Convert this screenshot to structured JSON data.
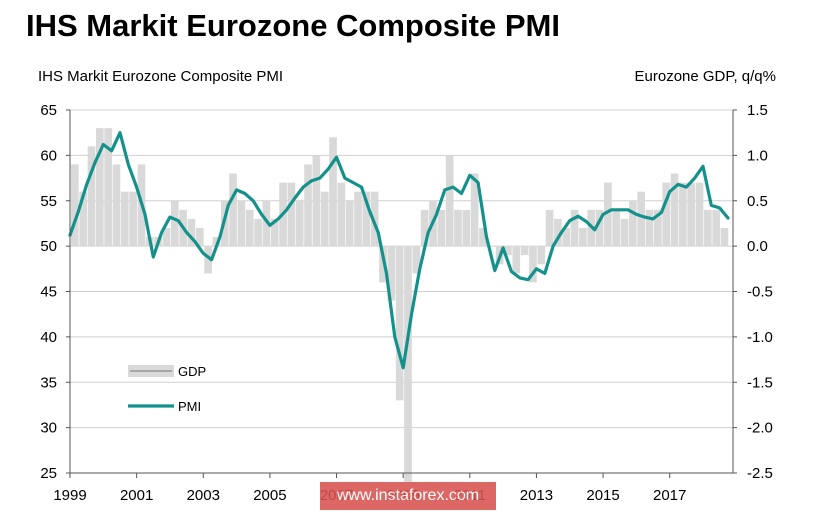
{
  "colors": {
    "pmi": "#14918a",
    "gdp": "#d9d9d9",
    "grid": "#d0d0d0",
    "watermark_bg": "#d9534f"
  },
  "chart_data": {
    "type": "bar+line",
    "title": "IHS Markit Eurozone Composite PMI",
    "ylabel_left": "IHS Markit Eurozone Composite PMI",
    "ylabel_right": "Eurozone GDP, q/q%",
    "x_ticks": [
      "1999",
      "2001",
      "2003",
      "2005",
      "2007",
      "2009",
      "2011",
      "2013",
      "2015",
      "2017"
    ],
    "xlim": [
      1999.0,
      2018.9
    ],
    "ylim_left": [
      25,
      65
    ],
    "ylim_right": [
      -2.5,
      1.5
    ],
    "y_ticks_left": [
      25,
      30,
      35,
      40,
      45,
      50,
      55,
      60,
      65
    ],
    "y_ticks_right": [
      "-2.5",
      "-2.0",
      "-1.5",
      "-1.0",
      "-0.5",
      "0.0",
      "0.5",
      "1.0",
      "1.5"
    ],
    "legend": [
      "GDP",
      "PMI"
    ],
    "legend_position": "bottom-left",
    "grid": true,
    "series": [
      {
        "name": "GDP",
        "kind": "bar",
        "axis": "right",
        "x": [
          1999.0,
          1999.25,
          1999.5,
          1999.75,
          2000.0,
          2000.25,
          2000.5,
          2000.75,
          2001.0,
          2001.25,
          2001.5,
          2001.75,
          2002.0,
          2002.25,
          2002.5,
          2002.75,
          2003.0,
          2003.25,
          2003.5,
          2003.75,
          2004.0,
          2004.25,
          2004.5,
          2004.75,
          2005.0,
          2005.25,
          2005.5,
          2005.75,
          2006.0,
          2006.25,
          2006.5,
          2006.75,
          2007.0,
          2007.25,
          2007.5,
          2007.75,
          2008.0,
          2008.25,
          2008.5,
          2008.75,
          2009.0,
          2009.25,
          2009.5,
          2009.75,
          2010.0,
          2010.25,
          2010.5,
          2010.75,
          2011.0,
          2011.25,
          2011.5,
          2011.75,
          2012.0,
          2012.25,
          2012.5,
          2012.75,
          2013.0,
          2013.25,
          2013.5,
          2013.75,
          2014.0,
          2014.25,
          2014.5,
          2014.75,
          2015.0,
          2015.25,
          2015.5,
          2015.75,
          2016.0,
          2016.25,
          2016.5,
          2016.75,
          2017.0,
          2017.25,
          2017.5,
          2017.75,
          2018.0,
          2018.25,
          2018.5
        ],
        "values": [
          0.9,
          0.6,
          1.1,
          1.3,
          1.3,
          0.9,
          0.6,
          0.6,
          0.9,
          0.1,
          0.1,
          0.2,
          0.5,
          0.4,
          0.3,
          0.2,
          -0.3,
          0.1,
          0.5,
          0.8,
          0.5,
          0.4,
          0.3,
          0.5,
          0.3,
          0.7,
          0.7,
          0.5,
          0.9,
          1.0,
          0.6,
          1.2,
          0.7,
          0.5,
          0.6,
          0.6,
          0.6,
          -0.4,
          -0.6,
          -1.7,
          -2.6,
          -0.3,
          0.4,
          0.5,
          0.4,
          1.0,
          0.4,
          0.4,
          0.8,
          0.2,
          0.0,
          -0.2,
          -0.1,
          -0.3,
          -0.1,
          -0.4,
          -0.2,
          0.4,
          0.3,
          0.2,
          0.4,
          0.2,
          0.4,
          0.4,
          0.7,
          0.4,
          0.3,
          0.5,
          0.6,
          0.4,
          0.4,
          0.7,
          0.8,
          0.7,
          0.7,
          0.7,
          0.4,
          0.4,
          0.2
        ]
      },
      {
        "name": "PMI",
        "kind": "line",
        "axis": "left",
        "x": [
          1999.0,
          1999.25,
          1999.5,
          1999.75,
          2000.0,
          2000.25,
          2000.5,
          2000.75,
          2001.0,
          2001.25,
          2001.5,
          2001.75,
          2002.0,
          2002.25,
          2002.5,
          2002.75,
          2003.0,
          2003.25,
          2003.5,
          2003.75,
          2004.0,
          2004.25,
          2004.5,
          2004.75,
          2005.0,
          2005.25,
          2005.5,
          2005.75,
          2006.0,
          2006.25,
          2006.5,
          2006.75,
          2007.0,
          2007.25,
          2007.5,
          2007.75,
          2008.0,
          2008.25,
          2008.5,
          2008.75,
          2009.0,
          2009.25,
          2009.5,
          2009.75,
          2010.0,
          2010.25,
          2010.5,
          2010.75,
          2011.0,
          2011.25,
          2011.5,
          2011.75,
          2012.0,
          2012.25,
          2012.5,
          2012.75,
          2013.0,
          2013.25,
          2013.5,
          2013.75,
          2014.0,
          2014.25,
          2014.5,
          2014.75,
          2015.0,
          2015.25,
          2015.5,
          2015.75,
          2016.0,
          2016.25,
          2016.5,
          2016.75,
          2017.0,
          2017.25,
          2017.5,
          2017.75,
          2018.0,
          2018.25,
          2018.5,
          2018.75
        ],
        "values": [
          51.2,
          53.8,
          56.8,
          59.2,
          61.2,
          60.5,
          62.5,
          59.0,
          56.5,
          53.5,
          48.8,
          51.5,
          53.2,
          52.8,
          51.5,
          50.5,
          49.2,
          48.5,
          51.0,
          54.5,
          56.2,
          55.8,
          55.0,
          53.5,
          52.3,
          53.0,
          54.0,
          55.3,
          56.5,
          57.2,
          57.5,
          58.5,
          59.8,
          57.5,
          57.0,
          56.5,
          53.8,
          51.5,
          47.0,
          40.0,
          36.6,
          42.5,
          47.5,
          51.5,
          53.5,
          56.2,
          56.5,
          55.8,
          57.8,
          57.0,
          51.0,
          47.3,
          49.8,
          47.2,
          46.5,
          46.3,
          47.5,
          47.0,
          50.0,
          51.5,
          52.8,
          53.3,
          52.7,
          51.8,
          53.5,
          54.0,
          54.0,
          54.0,
          53.5,
          53.2,
          53.0,
          53.7,
          56.0,
          56.8,
          56.5,
          57.5,
          58.8,
          54.5,
          54.2,
          53.1
        ]
      }
    ]
  },
  "watermark": "www.instaforex.com"
}
